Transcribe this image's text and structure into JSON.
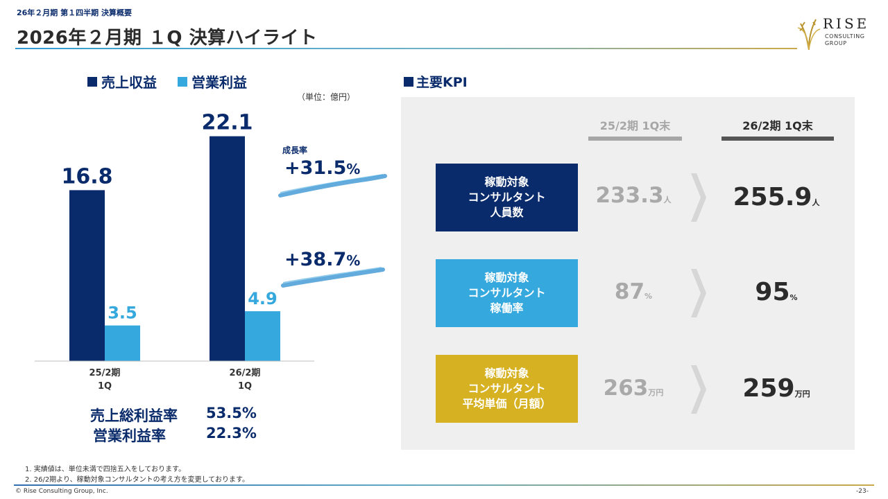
{
  "header": {
    "breadcrumb": "26年２月期 第１四半期 決算概要",
    "title": "2026年２月期 １Q 決算ハイライト"
  },
  "logo": {
    "name": "RISE",
    "line1": "CONSULTING",
    "line2": "GROUP"
  },
  "colors": {
    "navy": "#0a2b6b",
    "light_blue": "#35a8dd",
    "gold": "#d6b121",
    "panel_bg": "#efefef"
  },
  "legend": {
    "revenue": "売上収益",
    "operating_profit": "営業利益"
  },
  "unit_note": "（単位：億円）",
  "chart_data": {
    "type": "bar",
    "categories": [
      "25/2期\n1Q",
      "26/2期\n1Q"
    ],
    "series": [
      {
        "name": "売上収益",
        "values": [
          16.8,
          22.1
        ],
        "labels": [
          "16.8",
          "22.1"
        ]
      },
      {
        "name": "営業利益",
        "values": [
          3.5,
          4.9
        ],
        "labels": [
          "3.5",
          "4.9"
        ]
      }
    ],
    "ylim": [
      0,
      25
    ],
    "grid": false,
    "legend": "top-left",
    "annotations": {
      "growth_title": "成長率",
      "revenue_growth": "+31.5",
      "op_growth": "+38.7",
      "pct_sign": "%"
    }
  },
  "ratios": [
    {
      "label": "売上総利益率",
      "value": "53.5%"
    },
    {
      "label": "営業利益率",
      "value": "22.3%"
    }
  ],
  "kpi": {
    "heading": "主要KPI",
    "col_prev": "25/2期 1Q末",
    "col_cur": "26/2期 1Q末",
    "rows": [
      {
        "lines": [
          "稼動対象",
          "コンサルタント",
          "人員数"
        ],
        "color": "#0a2b6b",
        "prev": "233.3",
        "prev_unit": "人",
        "cur": "255.9",
        "cur_unit": "人"
      },
      {
        "lines": [
          "稼動対象",
          "コンサルタント",
          "稼働率"
        ],
        "color": "#35a8dd",
        "prev": "87",
        "prev_unit": "%",
        "cur": "95",
        "cur_unit": "%"
      },
      {
        "lines": [
          "稼動対象",
          "コンサルタント",
          "平均単価（月額）"
        ],
        "color": "#d6b121",
        "prev": "263",
        "prev_unit": "万円",
        "cur": "259",
        "cur_unit": "万円"
      }
    ]
  },
  "footnotes": [
    "1. 実績値は、単位未満で四捨五入をしております。",
    "2. 26/2期より、稼動対象コンサルタントの考え方を変更しております。"
  ],
  "footer": {
    "copyright": "© Rise Consulting Group, Inc.",
    "page": "-23-"
  }
}
